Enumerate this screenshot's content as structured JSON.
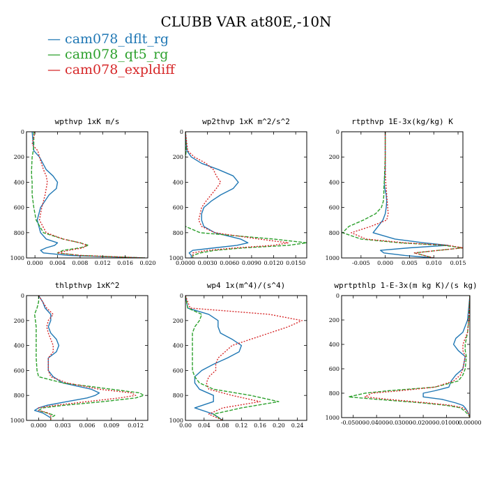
{
  "title": "CLUBB VAR at80E,-10N",
  "legend": [
    {
      "label": "cam078_dflt_rg",
      "color": "#1f77b4"
    },
    {
      "label": "cam078_qt5_rg",
      "color": "#2ca02c"
    },
    {
      "label": "cam078_expldiff",
      "color": "#d62728"
    }
  ],
  "chart_data": [
    {
      "type": "line",
      "title": "wpthvp  1xK m/s",
      "xlim": [
        -0.0015,
        0.02
      ],
      "ylim": [
        1000,
        0
      ],
      "xticks": [
        0.0,
        0.004,
        0.008,
        0.012,
        0.016,
        0.02
      ],
      "xticklabels": [
        "0.000",
        "0.004",
        "0.008",
        "0.012",
        "0.016",
        "0.020"
      ],
      "yticks": [
        0,
        200,
        400,
        600,
        800,
        1000
      ],
      "yticklabels": [
        "0",
        "200",
        "400",
        "600",
        "800",
        "1000"
      ],
      "y": [
        0,
        100,
        150,
        200,
        300,
        350,
        400,
        450,
        500,
        600,
        700,
        800,
        850,
        880,
        900,
        920,
        940,
        960,
        980,
        1000
      ],
      "series": [
        {
          "name": "cam078_dflt_rg",
          "x": [
            -0.0005,
            -0.0003,
            -0.0002,
            0.0008,
            0.002,
            0.0032,
            0.004,
            0.0038,
            0.0025,
            0.001,
            0.0004,
            0.001,
            0.002,
            0.004,
            0.0035,
            0.002,
            0.001,
            0.0015,
            0.006,
            0.0195
          ]
        },
        {
          "name": "cam078_qt5_rg",
          "x": [
            -0.0002,
            -0.0002,
            -0.0003,
            -0.0005,
            -0.0006,
            -0.0006,
            -0.0005,
            -0.0005,
            -0.0005,
            -0.0002,
            0.0002,
            0.0015,
            0.005,
            0.008,
            0.0095,
            0.008,
            0.005,
            0.004,
            0.008,
            0.0195
          ]
        },
        {
          "name": "cam078_expldiff",
          "x": [
            0.0,
            -0.0005,
            0.0005,
            0.0008,
            0.0015,
            0.002,
            0.0022,
            0.002,
            0.0018,
            0.0012,
            0.0008,
            0.002,
            0.005,
            0.008,
            0.0092,
            0.0085,
            0.006,
            0.004,
            0.008,
            0.0195
          ]
        }
      ]
    },
    {
      "type": "line",
      "title": "wp2thvp  1xK m^2/s^2",
      "xlim": [
        0.0,
        0.0165
      ],
      "ylim": [
        1000,
        0
      ],
      "xticks": [
        0.0,
        0.003,
        0.006,
        0.009,
        0.012,
        0.015
      ],
      "xticklabels": [
        "0.0000",
        "0.0030",
        "0.0060",
        "0.0090",
        "0.0120",
        "0.0150"
      ],
      "yticks": [
        0,
        200,
        400,
        600,
        800,
        1000
      ],
      "yticklabels": [
        "0",
        "200",
        "400",
        "600",
        "800",
        "1000"
      ],
      "y": [
        0,
        150,
        200,
        250,
        300,
        350,
        400,
        450,
        500,
        550,
        600,
        650,
        700,
        750,
        800,
        850,
        880,
        900,
        920,
        940,
        960,
        980,
        1000
      ],
      "series": [
        {
          "name": "cam078_dflt_rg",
          "x": [
            0.0,
            0.0002,
            0.0008,
            0.0022,
            0.0045,
            0.0065,
            0.0072,
            0.0065,
            0.0048,
            0.0035,
            0.0025,
            0.0022,
            0.0022,
            0.0025,
            0.004,
            0.0075,
            0.0085,
            0.007,
            0.004,
            0.001,
            0.0005,
            0.0008,
            0.0008
          ]
        },
        {
          "name": "cam078_qt5_rg",
          "x": [
            0.0,
            0.0001,
            0.0,
            -0.0001,
            -0.0002,
            -0.0002,
            -0.0003,
            -0.0003,
            -0.0003,
            -0.0003,
            -0.0003,
            -0.0003,
            -0.0002,
            0.0,
            0.002,
            0.012,
            0.0165,
            0.014,
            0.008,
            0.004,
            0.002,
            0.001,
            0.001
          ]
        },
        {
          "name": "cam078_expldiff",
          "x": [
            0.0,
            0.0003,
            0.0012,
            0.0028,
            0.0038,
            0.0042,
            0.0048,
            0.0042,
            0.0035,
            0.0028,
            0.0022,
            0.002,
            0.0018,
            0.0022,
            0.004,
            0.01,
            0.014,
            0.012,
            0.007,
            0.003,
            0.001,
            0.001,
            0.001
          ]
        }
      ]
    },
    {
      "type": "line",
      "title": "rtpthvp  1E-3x(kg/kg) K",
      "xlim": [
        -0.009,
        0.016
      ],
      "ylim": [
        1000,
        0
      ],
      "xticks": [
        -0.005,
        0.0,
        0.005,
        0.01,
        0.015
      ],
      "xticklabels": [
        "-0.005",
        "0.000",
        "0.005",
        "0.010",
        "0.015"
      ],
      "yticks": [
        0,
        200,
        400,
        600,
        800,
        1000
      ],
      "yticklabels": [
        "0",
        "200",
        "400",
        "600",
        "800",
        "1000"
      ],
      "y": [
        0,
        200,
        300,
        400,
        450,
        500,
        550,
        600,
        650,
        700,
        750,
        800,
        850,
        880,
        900,
        920,
        940,
        960,
        980,
        1000
      ],
      "series": [
        {
          "name": "cam078_dflt_rg",
          "x": [
            0.0,
            0.0,
            0.0,
            -0.0002,
            -0.0001,
            0.0002,
            0.0003,
            0.0002,
            0.0,
            -0.0005,
            -0.0015,
            -0.0025,
            0.002,
            0.008,
            0.013,
            0.005,
            -0.001,
            -0.0003,
            0.004,
            0.01
          ]
        },
        {
          "name": "cam078_qt5_rg",
          "x": [
            0.0,
            0.0,
            -0.0001,
            -0.0002,
            -0.0003,
            -0.0003,
            -0.0004,
            -0.0008,
            -0.002,
            -0.0045,
            -0.0075,
            -0.0088,
            -0.005,
            0.003,
            0.012,
            0.016,
            0.011,
            0.006,
            0.008,
            0.01
          ]
        },
        {
          "name": "cam078_expldiff",
          "x": [
            0.0,
            0.0,
            0.0,
            0.0001,
            0.0002,
            0.0003,
            0.0004,
            0.0005,
            0.0006,
            0.0003,
            -0.003,
            -0.007,
            -0.004,
            0.004,
            0.013,
            0.016,
            0.011,
            0.006,
            0.008,
            0.01
          ]
        }
      ]
    },
    {
      "type": "line",
      "title": "thlpthvp  1xK^2",
      "xlim": [
        -0.0015,
        0.0135
      ],
      "ylim": [
        1000,
        0
      ],
      "xticks": [
        0.0,
        0.003,
        0.006,
        0.009,
        0.012
      ],
      "xticklabels": [
        "0.000",
        "0.003",
        "0.006",
        "0.009",
        "0.012"
      ],
      "yticks": [
        0,
        200,
        400,
        600,
        800,
        1000
      ],
      "yticklabels": [
        "0",
        "200",
        "400",
        "600",
        "800",
        "1000"
      ],
      "y": [
        0,
        50,
        100,
        150,
        200,
        250,
        300,
        350,
        400,
        450,
        500,
        600,
        650,
        700,
        750,
        780,
        800,
        820,
        850,
        880,
        900,
        920,
        940,
        960,
        980,
        1000
      ],
      "series": [
        {
          "name": "cam078_dflt_rg",
          "x": [
            0.0,
            0.0005,
            0.0008,
            0.0015,
            0.0015,
            0.0012,
            0.0015,
            0.0022,
            0.0025,
            0.0022,
            0.0012,
            0.0012,
            0.0018,
            0.003,
            0.0065,
            0.0075,
            0.007,
            0.006,
            0.0035,
            0.001,
            0.0,
            -0.0005,
            0.0005,
            0.001,
            0.0015,
            0.0015
          ]
        },
        {
          "name": "cam078_qt5_rg",
          "x": [
            0.0,
            0.0,
            -0.0002,
            -0.0005,
            -0.0004,
            -0.0003,
            -0.0003,
            -0.0003,
            -0.0003,
            -0.0003,
            -0.0003,
            -0.0002,
            0.0,
            0.003,
            0.009,
            0.0125,
            0.013,
            0.012,
            0.008,
            0.003,
            0.0005,
            0.0,
            0.001,
            0.002,
            0.0015,
            0.0015
          ]
        },
        {
          "name": "cam078_expldiff",
          "x": [
            0.0,
            0.0005,
            0.001,
            0.0018,
            0.0012,
            0.001,
            0.0012,
            0.0015,
            0.0018,
            0.0018,
            0.0012,
            0.0012,
            0.0015,
            0.0035,
            0.0075,
            0.0115,
            0.012,
            0.01,
            0.006,
            0.002,
            0.0,
            0.0,
            0.0012,
            0.0015,
            0.0015,
            0.0015
          ]
        }
      ]
    },
    {
      "type": "line",
      "title": "wp4  1x(m^4)/(s^4)",
      "xlim": [
        0.0,
        0.26
      ],
      "ylim": [
        1000,
        0
      ],
      "xticks": [
        0.0,
        0.04,
        0.08,
        0.12,
        0.16,
        0.2,
        0.24
      ],
      "xticklabels": [
        "0.00",
        "0.04",
        "0.08",
        "0.12",
        "0.16",
        "0.20",
        "0.24"
      ],
      "yticks": [
        0,
        200,
        400,
        600,
        800,
        1000
      ],
      "yticklabels": [
        "0",
        "200",
        "400",
        "600",
        "800",
        "1000"
      ],
      "y": [
        0,
        100,
        150,
        200,
        250,
        300,
        350,
        400,
        450,
        500,
        550,
        600,
        650,
        700,
        750,
        800,
        850,
        900,
        950,
        1000
      ],
      "series": [
        {
          "name": "cam078_dflt_rg",
          "x": [
            0.0,
            0.005,
            0.05,
            0.07,
            0.07,
            0.075,
            0.1,
            0.12,
            0.115,
            0.09,
            0.06,
            0.035,
            0.02,
            0.02,
            0.03,
            0.06,
            0.06,
            0.02,
            0.06,
            0.08
          ]
        },
        {
          "name": "cam078_qt5_rg",
          "x": [
            0.0,
            0.005,
            0.035,
            0.03,
            0.02,
            0.015,
            0.015,
            0.015,
            0.015,
            0.015,
            0.015,
            0.015,
            0.02,
            0.03,
            0.06,
            0.14,
            0.2,
            0.12,
            0.06,
            0.08
          ]
        },
        {
          "name": "cam078_expldiff",
          "x": [
            0.0,
            0.01,
            0.18,
            0.25,
            0.22,
            0.18,
            0.14,
            0.1,
            0.085,
            0.07,
            0.065,
            0.065,
            0.05,
            0.045,
            0.05,
            0.1,
            0.16,
            0.08,
            0.05,
            0.08
          ]
        }
      ]
    },
    {
      "type": "line",
      "title": "wprtpthlp  1-E-3x(m kg K)/(s kg)",
      "xlim": [
        -0.055,
        0.0
      ],
      "ylim": [
        1000,
        0
      ],
      "xticks": [
        -0.05,
        -0.04,
        -0.03,
        -0.02,
        -0.01,
        0.0
      ],
      "xticklabels": [
        "-0.05000",
        "-0.04000",
        "-0.03000",
        "-0.02000",
        "-0.01000",
        "0.00000"
      ],
      "yticks": [
        0,
        200,
        400,
        600,
        800,
        1000
      ],
      "yticklabels": [
        "0",
        "200",
        "400",
        "600",
        "800",
        "1000"
      ],
      "y": [
        0,
        200,
        300,
        350,
        400,
        450,
        500,
        600,
        650,
        700,
        750,
        780,
        800,
        830,
        850,
        880,
        900,
        920,
        950,
        980,
        1000
      ],
      "series": [
        {
          "name": "cam078_dflt_rg",
          "x": [
            0.0,
            -0.001,
            -0.003,
            -0.006,
            -0.007,
            -0.005,
            -0.002,
            -0.003,
            -0.006,
            -0.008,
            -0.009,
            -0.015,
            -0.02,
            -0.02,
            -0.012,
            -0.006,
            -0.003,
            -0.002,
            -0.001,
            -0.0003,
            0.0
          ]
        },
        {
          "name": "cam078_qt5_rg",
          "x": [
            0.0,
            -0.0005,
            -0.001,
            -0.0015,
            -0.002,
            -0.002,
            -0.0015,
            -0.002,
            -0.003,
            -0.005,
            -0.015,
            -0.035,
            -0.045,
            -0.052,
            -0.04,
            -0.02,
            -0.01,
            -0.004,
            -0.002,
            -0.0005,
            0.0
          ]
        },
        {
          "name": "cam078_expldiff",
          "x": [
            0.0,
            -0.0005,
            -0.001,
            -0.002,
            -0.003,
            -0.003,
            -0.002,
            -0.003,
            -0.004,
            -0.007,
            -0.015,
            -0.03,
            -0.042,
            -0.045,
            -0.035,
            -0.018,
            -0.008,
            -0.003,
            -0.001,
            -0.0003,
            0.0
          ]
        }
      ]
    }
  ]
}
